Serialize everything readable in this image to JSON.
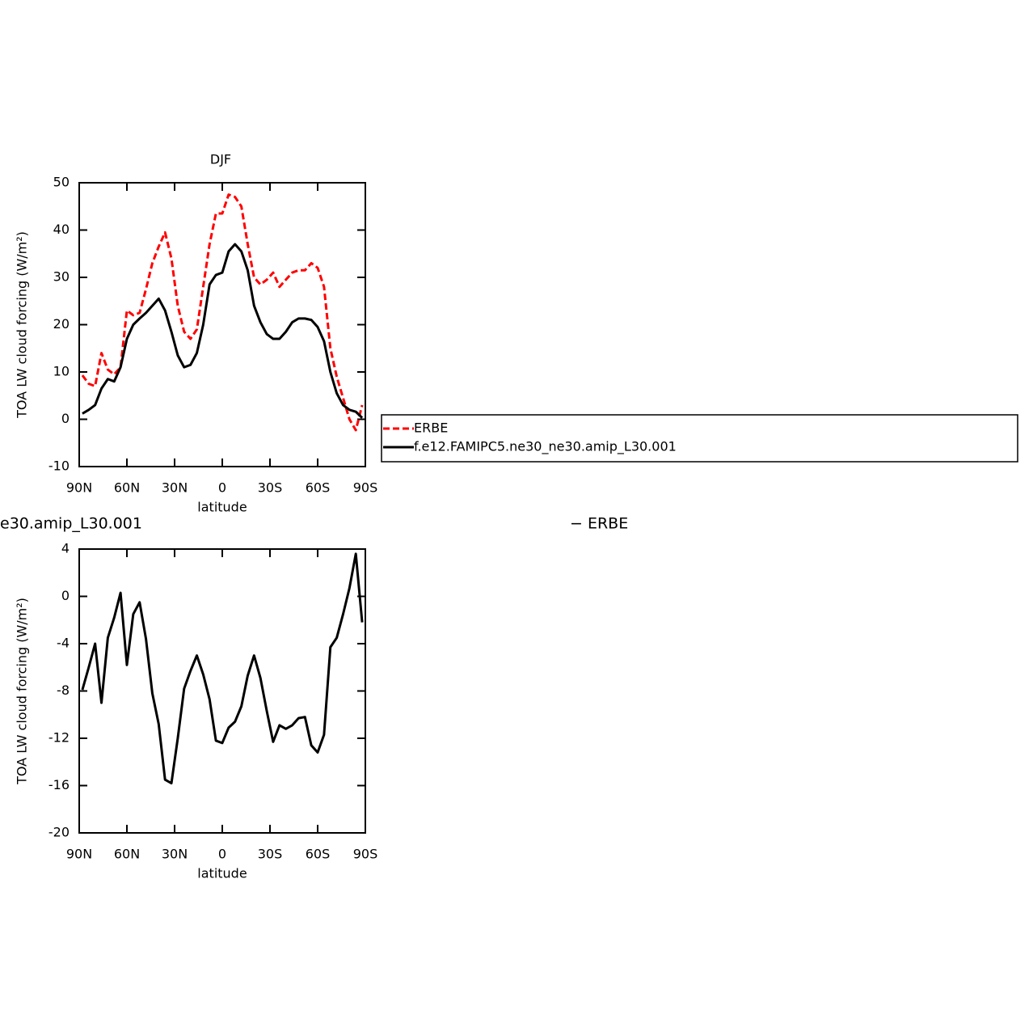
{
  "chart_data": [
    {
      "type": "line",
      "title": "DJF",
      "xlabel": "latitude",
      "ylabel": "TOA LW cloud forcing (W/m²)",
      "x": [
        88,
        84,
        80,
        76,
        72,
        68,
        64,
        60,
        56,
        52,
        48,
        44,
        40,
        36,
        32,
        28,
        24,
        20,
        16,
        12,
        8,
        4,
        0,
        -4,
        -8,
        -12,
        -16,
        -20,
        -24,
        -28,
        -32,
        -36,
        -40,
        -44,
        -48,
        -52,
        -56,
        -60,
        -64,
        -68,
        -72,
        -76,
        -80,
        -84,
        -88
      ],
      "series": [
        {
          "name": "ERBE",
          "color": "#ff0000",
          "dashed": true,
          "values": [
            9.3,
            7.5,
            7,
            14,
            10.5,
            9.5,
            11,
            23,
            22,
            22.5,
            27.5,
            33,
            36.5,
            39.5,
            34,
            24,
            18.5,
            17,
            19,
            28,
            37,
            43.5,
            43.5,
            47.5,
            47,
            45,
            37,
            30,
            28.5,
            29.5,
            31,
            28,
            29.5,
            31,
            31.5,
            31.5,
            33,
            32,
            28,
            15,
            9,
            4.5,
            0,
            -2.3,
            3
          ]
        },
        {
          "name": "f.e12.FAMIPC5.ne30_ne30.amip_L30.001",
          "color": "#000000",
          "dashed": false,
          "values": [
            1.2,
            2,
            3,
            6.5,
            8.5,
            8,
            11,
            17,
            20,
            21.3,
            22.5,
            24,
            25.5,
            23,
            18.5,
            13.5,
            11,
            11.5,
            14,
            20,
            28.5,
            30.5,
            31,
            35.5,
            37,
            35.5,
            31.5,
            24,
            20.5,
            18,
            17,
            17,
            18.5,
            20.5,
            21.3,
            21.3,
            21,
            19.5,
            16.5,
            10,
            5.5,
            3,
            2,
            1.6,
            0.3
          ]
        }
      ],
      "xlim": [
        90,
        -90
      ],
      "xticks": [
        {
          "value": 90,
          "label": "90N"
        },
        {
          "value": 60,
          "label": "60N"
        },
        {
          "value": 30,
          "label": "30N"
        },
        0,
        {
          "value": -30,
          "label": "30S"
        },
        {
          "value": -60,
          "label": "60S"
        },
        {
          "value": -90,
          "label": "90S"
        }
      ],
      "ylim": [
        -10,
        50
      ],
      "yticks": [
        -10,
        0,
        10,
        20,
        30,
        40,
        50
      ],
      "legend": "right"
    },
    {
      "type": "line",
      "title_parts": [
        "e30.amip_L30.001",
        "− ERBE"
      ],
      "xlabel": "latitude",
      "ylabel": "TOA LW cloud forcing (W/m²)",
      "x": [
        88,
        84,
        80,
        76,
        72,
        68,
        64,
        60,
        56,
        52,
        48,
        44,
        40,
        36,
        32,
        28,
        24,
        20,
        16,
        12,
        8,
        4,
        0,
        -4,
        -8,
        -12,
        -16,
        -20,
        -24,
        -28,
        -32,
        -36,
        -40,
        -44,
        -48,
        -52,
        -56,
        -60,
        -64,
        -68,
        -72,
        -76,
        -80,
        -84,
        -88
      ],
      "color": "#000000",
      "values": [
        -7.9,
        -6,
        -4,
        -9,
        -3.5,
        -1.8,
        0.3,
        -5.8,
        -1.5,
        -0.5,
        -3.6,
        -8.2,
        -10.8,
        -15.5,
        -15.8,
        -12,
        -7.8,
        -6.3,
        -5,
        -6.6,
        -8.7,
        -12.2,
        -12.4,
        -11.1,
        -10.6,
        -9.3,
        -6.7,
        -5,
        -6.9,
        -9.7,
        -12.3,
        -10.9,
        -11.2,
        -10.9,
        -10.3,
        -10.2,
        -12.6,
        -13.2,
        -11.7,
        -4.3,
        -3.5,
        -1.5,
        0.7,
        3.6,
        -2.2
      ],
      "xlim": [
        90,
        -90
      ],
      "xticks": [
        {
          "value": 90,
          "label": "90N"
        },
        {
          "value": 60,
          "label": "60N"
        },
        {
          "value": 30,
          "label": "30N"
        },
        0,
        {
          "value": -30,
          "label": "30S"
        },
        {
          "value": -60,
          "label": "60S"
        },
        {
          "value": -90,
          "label": "90S"
        }
      ],
      "ylim": [
        -20,
        4
      ],
      "yticks": [
        -20,
        -16,
        -12,
        -8,
        -4,
        0,
        4
      ]
    }
  ]
}
